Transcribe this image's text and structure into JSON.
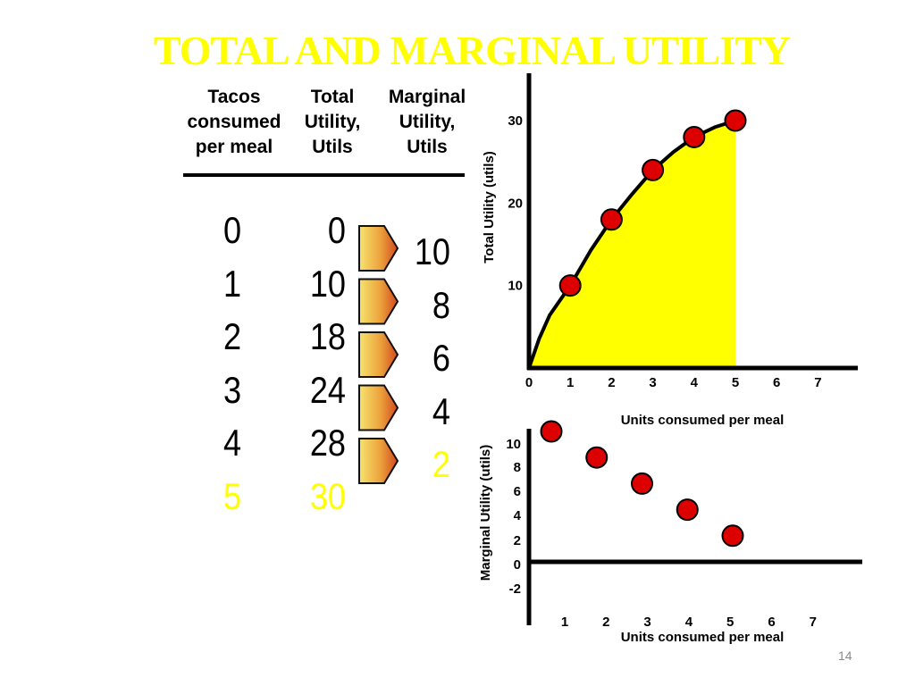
{
  "title": "TOTAL AND MARGINAL UTILITY",
  "page_number": "14",
  "colors": {
    "title": "#ffff00",
    "highlight": "#ffff00",
    "point_fill": "#dd0000",
    "area_fill": "#ffff00"
  },
  "table": {
    "headers": [
      {
        "lines": [
          "Tacos",
          "consumed",
          "per meal"
        ]
      },
      {
        "lines": [
          "Total",
          "Utility,",
          "Utils"
        ]
      },
      {
        "lines": [
          "Marginal",
          "Utility,",
          "Utils"
        ]
      }
    ],
    "tacos": [
      "0",
      "1",
      "2",
      "3",
      "4",
      "5"
    ],
    "total_utility": [
      "0",
      "10",
      "18",
      "24",
      "28",
      "30"
    ],
    "marginal_utility": [
      "10",
      "8",
      "6",
      "4",
      "2"
    ],
    "highlight_row": 5,
    "arrow_icon": "pentagon-arrow-icon"
  },
  "chart_data": [
    {
      "type": "area",
      "ylabel": "Total Utility (utils)",
      "xlabel": "Units consumed per meal",
      "x_ticks": [
        "0",
        "1",
        "2",
        "3",
        "4",
        "5",
        "6",
        "7"
      ],
      "y_ticks": [
        "10",
        "20",
        "30"
      ],
      "xlim": [
        0,
        7
      ],
      "ylim": [
        0,
        30
      ],
      "curve_x": [
        0,
        0.25,
        0.5,
        1,
        1.5,
        2,
        2.5,
        3,
        3.5,
        4,
        4.5,
        5
      ],
      "curve_y": [
        0,
        3.6,
        6.4,
        10,
        14.3,
        18,
        21.1,
        24,
        26.2,
        28,
        29.2,
        30
      ],
      "points": {
        "x": [
          1,
          2,
          3,
          4,
          5
        ],
        "y": [
          10,
          18,
          24,
          28,
          30
        ]
      },
      "shaded_to_x": 5
    },
    {
      "type": "scatter",
      "ylabel": "Marginal Utility (utils)",
      "xlabel": "Units consumed per meal",
      "x_ticks": [
        "1",
        "2",
        "3",
        "4",
        "5",
        "6",
        "7"
      ],
      "y_ticks": [
        "10",
        "8",
        "6",
        "4",
        "2",
        "0",
        "-2"
      ],
      "xlim": [
        0,
        7
      ],
      "ylim": [
        -2,
        10
      ],
      "points": {
        "x": [
          1,
          2,
          3,
          4,
          5
        ],
        "y": [
          10,
          8,
          6,
          4,
          2
        ]
      }
    }
  ]
}
